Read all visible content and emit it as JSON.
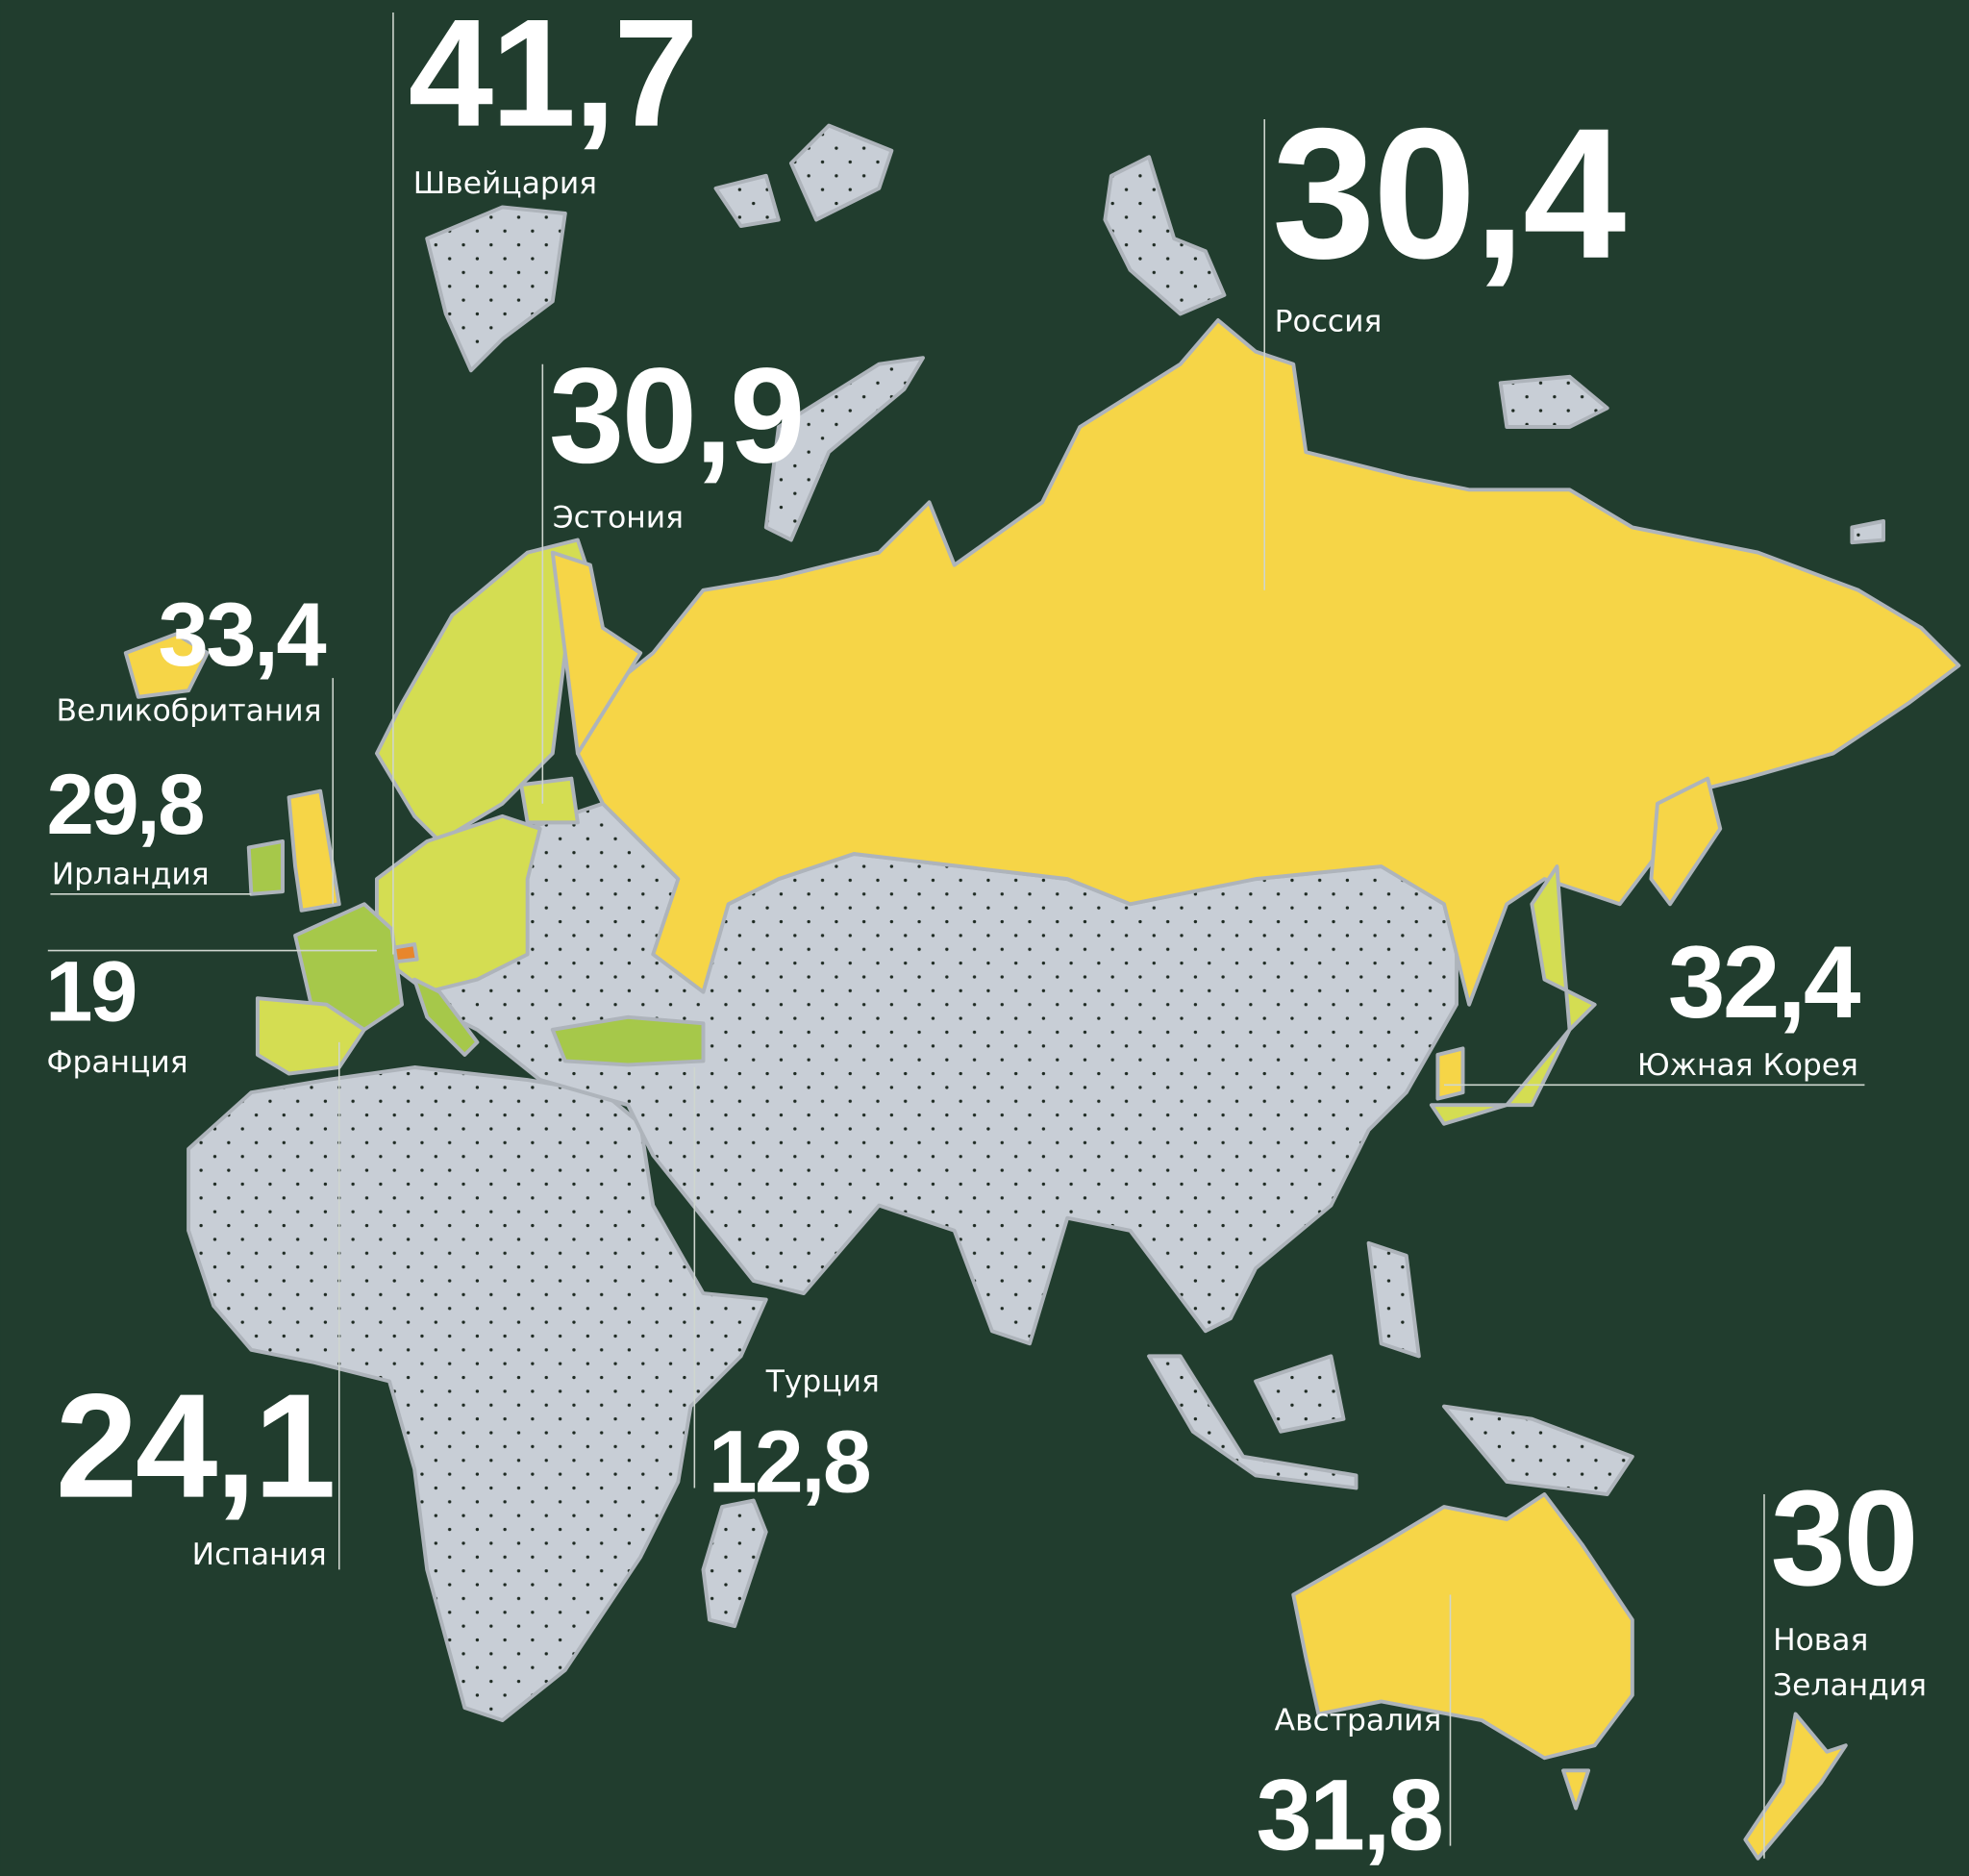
{
  "colors": {
    "background": "#213d2e",
    "no_data": "#c8ced6",
    "high": "#f6d547",
    "mid": "#d4dd52",
    "low": "#a6c84a",
    "highest": "#e8862c"
  },
  "labels": [
    {
      "value": "41,7",
      "country": "Швейцария"
    },
    {
      "value": "30,4",
      "country": "Россия"
    },
    {
      "value": "30,9",
      "country": "Эстония"
    },
    {
      "value": "33,4",
      "country": "Великобритания"
    },
    {
      "value": "29,8",
      "country": "Ирландия"
    },
    {
      "value": "19",
      "country": "Франция"
    },
    {
      "value": "24,1",
      "country": "Испания"
    },
    {
      "value": "12,8",
      "country": "Турция"
    },
    {
      "value": "32,4",
      "country": "Южная Корея"
    },
    {
      "value": "30",
      "country_line1": "Новая",
      "country_line2": "Зеландия"
    },
    {
      "value": "31,8",
      "country": "Австралия"
    }
  ]
}
